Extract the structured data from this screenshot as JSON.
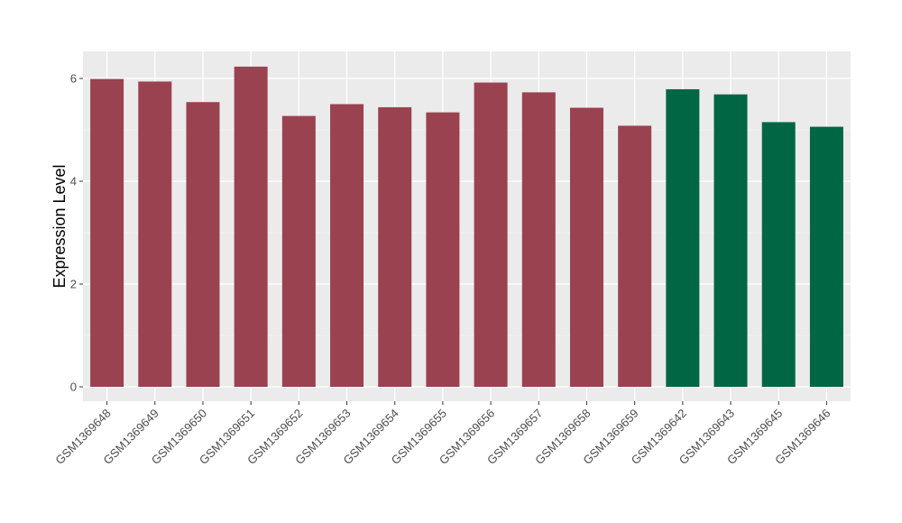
{
  "chart_data": {
    "type": "bar",
    "title": "",
    "xlabel": "",
    "ylabel": "Expression Level",
    "ylim": [
      0,
      6.5
    ],
    "yticks": [
      0,
      2,
      4,
      6
    ],
    "grid": true,
    "categories": [
      "GSM1369648",
      "GSM1369649",
      "GSM1369650",
      "GSM1369651",
      "GSM1369652",
      "GSM1369653",
      "GSM1369654",
      "GSM1369655",
      "GSM1369656",
      "GSM1369657",
      "GSM1369658",
      "GSM1369659",
      "GSM1369642",
      "GSM1369643",
      "GSM1369645",
      "GSM1369646"
    ],
    "values": [
      5.99,
      5.94,
      5.54,
      6.23,
      5.27,
      5.5,
      5.44,
      5.34,
      5.92,
      5.73,
      5.43,
      5.08,
      5.79,
      5.69,
      5.15,
      5.06
    ],
    "groups": [
      "a",
      "a",
      "a",
      "a",
      "a",
      "a",
      "a",
      "a",
      "a",
      "a",
      "a",
      "a",
      "b",
      "b",
      "b",
      "b"
    ],
    "colors": {
      "a": "#9a4250",
      "b": "#016644"
    },
    "panel_background": "#ebebeb"
  }
}
